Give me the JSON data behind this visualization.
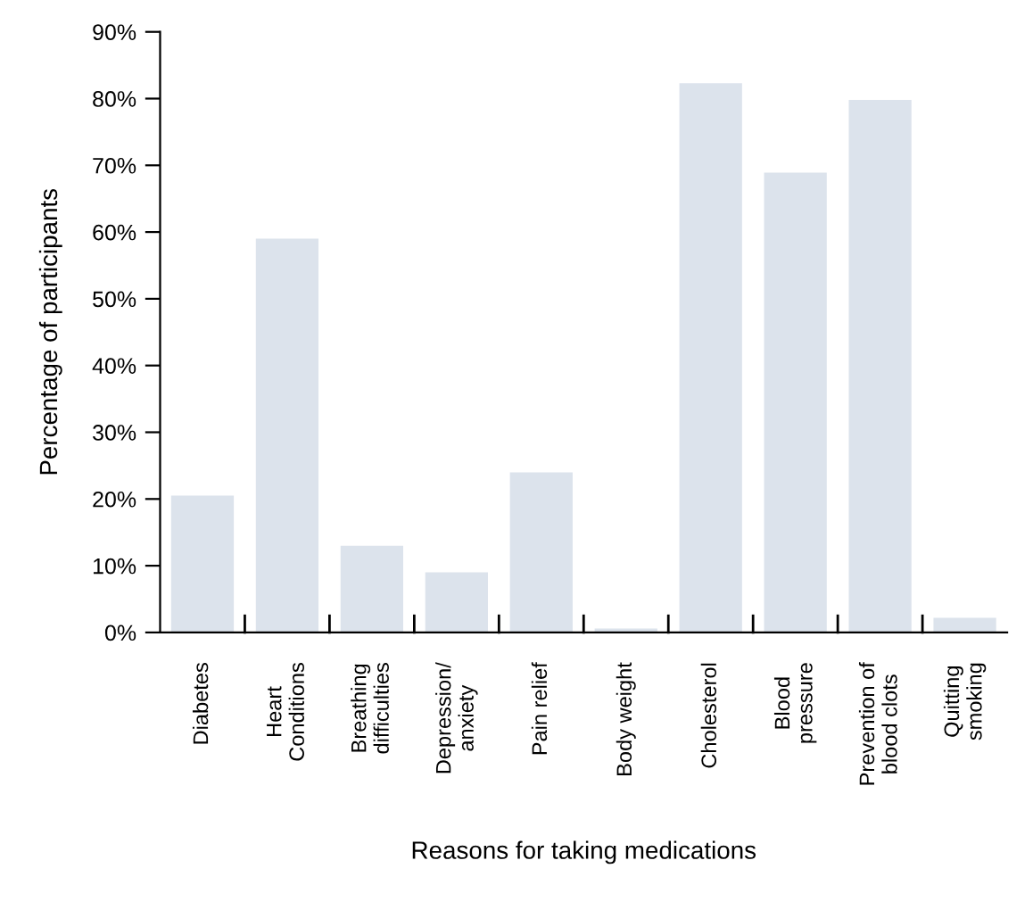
{
  "chart_data": {
    "type": "bar",
    "xlabel": "Reasons for taking medications",
    "ylabel": "Percentage of participants",
    "categories": [
      "Diabetes",
      "Heart\nConditions",
      "Breathing\ndifficulties",
      "Depression/\nanxiety",
      "Pain relief",
      "Body weight",
      "Cholesterol",
      "Blood\npressure",
      "Prevention of\nblood clots",
      "Quitting\nsmoking"
    ],
    "values": [
      20.5,
      59,
      13,
      9,
      24,
      0.6,
      82.3,
      68.9,
      79.8,
      2.2
    ],
    "color": "#dce3ec",
    "ylim": [
      0,
      90
    ],
    "yticks": [
      {
        "value": 0,
        "label": "0%"
      },
      {
        "value": 10,
        "label": "10%"
      },
      {
        "value": 20,
        "label": "20%"
      },
      {
        "value": 30,
        "label": "30%"
      },
      {
        "value": 40,
        "label": "40%"
      },
      {
        "value": 50,
        "label": "50%"
      },
      {
        "value": 60,
        "label": "60%"
      },
      {
        "value": 70,
        "label": "70%"
      },
      {
        "value": 80,
        "label": "80%"
      },
      {
        "value": 90,
        "label": "90%"
      }
    ],
    "grid": false
  }
}
